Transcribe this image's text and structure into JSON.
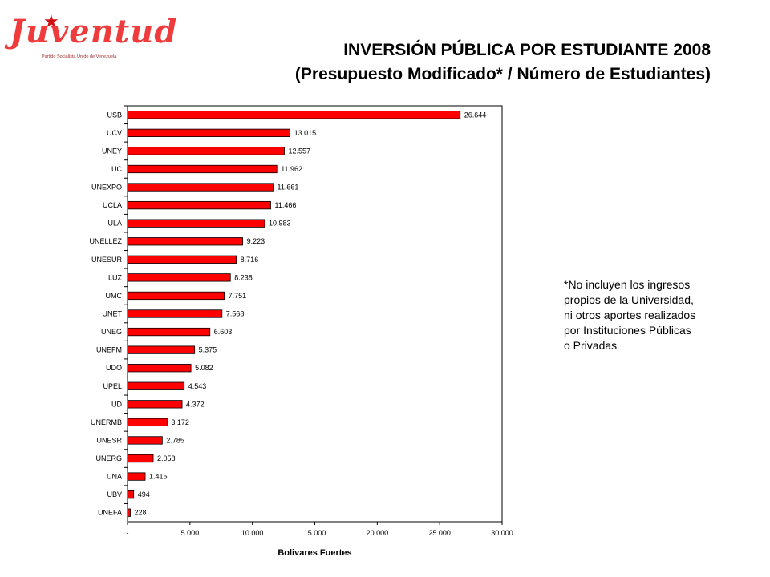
{
  "logo": {
    "text": "Juventud",
    "subtitle": "Partido Socialista Unido de Venezuela",
    "star_icon": "star-icon",
    "color": "#ef3b3b"
  },
  "header": {
    "title_line1": "INVERSIÓN PÚBLICA POR ESTUDIANTE 2008",
    "title_line2": "(Presupuesto Modificado* / Número de Estudiantes)"
  },
  "note": "*No incluyen los ingresos\npropios de la Universidad,\nni otros aportes realizados\npor Instituciones Públicas\no Privadas",
  "chart_data": {
    "type": "bar",
    "orientation": "horizontal",
    "bar_color": "#ff0000",
    "xlabel": "Bolivares Fuertes",
    "xlim": [
      0,
      30000
    ],
    "xticks": [
      0,
      5000,
      10000,
      15000,
      20000,
      25000,
      30000
    ],
    "xtick_labels": [
      "-",
      "5.000",
      "10.000",
      "15.000",
      "20.000",
      "25.000",
      "30.000"
    ],
    "categories": [
      "USB",
      "UCV",
      "UNEY",
      "UC",
      "UNEXPO",
      "UCLA",
      "ULA",
      "UNELLEZ",
      "UNESUR",
      "LUZ",
      "UMC",
      "UNET",
      "UNEG",
      "UNEFM",
      "UDO",
      "UPEL",
      "UD",
      "UNERMB",
      "UNESR",
      "UNERG",
      "UNA",
      "UBV",
      "UNEFA"
    ],
    "values": [
      26644,
      13015,
      12557,
      11962,
      11661,
      11466,
      10983,
      9223,
      8716,
      8238,
      7751,
      7568,
      6603,
      5375,
      5082,
      4543,
      4372,
      3172,
      2785,
      2058,
      1415,
      494,
      228
    ],
    "value_labels": [
      "26.644",
      "13.015",
      "12.557",
      "11.962",
      "11.661",
      "11.466",
      "10.983",
      "9.223",
      "8.716",
      "8.238",
      "7.751",
      "7.568",
      "6.603",
      "5.375",
      "5.082",
      "4.543",
      "4.372",
      "3.172",
      "2.785",
      "2.058",
      "1.415",
      "494",
      "228"
    ]
  }
}
